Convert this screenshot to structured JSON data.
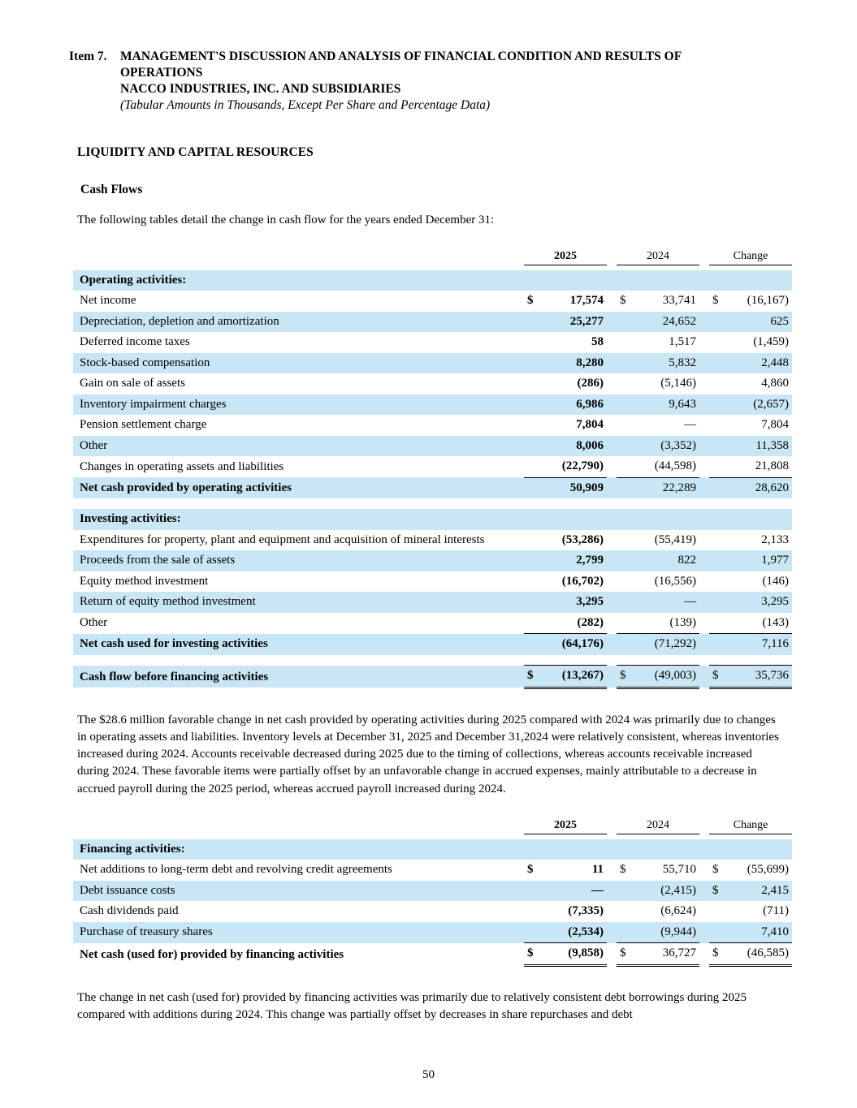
{
  "colors": {
    "row_shade": "#c8e6f4"
  },
  "header": {
    "item_label": "Item 7.",
    "title": "MANAGEMENT'S DISCUSSION AND ANALYSIS OF FINANCIAL CONDITION AND RESULTS OF OPERATIONS",
    "company": "NACCO INDUSTRIES, INC. AND SUBSIDIARIES",
    "note": "(Tabular Amounts in Thousands, Except Per Share and Percentage Data)"
  },
  "section_heading": "LIQUIDITY AND CAPITAL RESOURCES",
  "subsection_heading": "Cash Flows",
  "intro_text": "The following tables detail the change in cash flow for the years ended December 31:",
  "tables": [
    {
      "name": "operating-investing-cash-flow",
      "columns": [
        "2025",
        "2024",
        "Change"
      ],
      "rows": [
        {
          "type": "section",
          "label": "Operating activities:",
          "shaded": true
        },
        {
          "label": "Net income",
          "d": [
            true,
            true,
            true
          ],
          "values": [
            "17,574",
            "33,741",
            "(16,167)"
          ]
        },
        {
          "label": "Depreciation, depletion and amortization",
          "shaded": true,
          "values": [
            "25,277",
            "24,652",
            "625"
          ]
        },
        {
          "label": "Deferred income taxes",
          "values": [
            "58",
            "1,517",
            "(1,459)"
          ]
        },
        {
          "label": "Stock-based compensation",
          "shaded": true,
          "values": [
            "8,280",
            "5,832",
            "2,448"
          ]
        },
        {
          "label": "Gain on sale of assets",
          "values": [
            "(286)",
            "(5,146)",
            "4,860"
          ]
        },
        {
          "label": "Inventory impairment charges",
          "shaded": true,
          "values": [
            "6,986",
            "9,643",
            "(2,657)"
          ]
        },
        {
          "label": "Pension settlement charge",
          "values": [
            "7,804",
            "—",
            "7,804"
          ]
        },
        {
          "label": "Other",
          "shaded": true,
          "values": [
            "8,006",
            "(3,352)",
            "11,358"
          ]
        },
        {
          "label": "Changes in operating assets and liabilities",
          "values": [
            "(22,790)",
            "(44,598)",
            "21,808"
          ]
        },
        {
          "label": "Net cash provided by operating activities",
          "shaded": true,
          "bold": true,
          "topline": true,
          "values": [
            "50,909",
            "22,289",
            "28,620"
          ]
        },
        {
          "type": "spacer"
        },
        {
          "type": "section",
          "label": "Investing activities:",
          "shaded": true
        },
        {
          "label": "Expenditures for property, plant and equipment and acquisition of mineral interests",
          "values": [
            "(53,286)",
            "(55,419)",
            "2,133"
          ]
        },
        {
          "label": "Proceeds from the sale of assets",
          "shaded": true,
          "values": [
            "2,799",
            "822",
            "1,977"
          ]
        },
        {
          "label": "Equity method investment",
          "values": [
            "(16,702)",
            "(16,556)",
            "(146)"
          ]
        },
        {
          "label": "Return of equity method investment",
          "shaded": true,
          "values": [
            "3,295",
            "—",
            "3,295"
          ]
        },
        {
          "label": "Other",
          "values": [
            "(282)",
            "(139)",
            "(143)"
          ]
        },
        {
          "label": "Net cash used for investing activities",
          "shaded": true,
          "bold": true,
          "topline": true,
          "values": [
            "(64,176)",
            "(71,292)",
            "7,116"
          ]
        },
        {
          "type": "spacer"
        },
        {
          "label": "Cash flow before financing activities",
          "shaded": true,
          "bold": true,
          "d": [
            true,
            true,
            true
          ],
          "topline": true,
          "dbl": true,
          "values": [
            "(13,267)",
            "(49,003)",
            "35,736"
          ]
        }
      ]
    },
    {
      "name": "financing-cash-flow",
      "columns": [
        "2025",
        "2024",
        "Change"
      ],
      "rows": [
        {
          "type": "section",
          "label": "Financing activities:",
          "shaded": true
        },
        {
          "label": "Net additions to long-term debt and revolving credit agreements",
          "d": [
            true,
            true,
            true
          ],
          "values": [
            "11",
            "55,710",
            "(55,699)"
          ]
        },
        {
          "label": "Debt issuance costs",
          "shaded": true,
          "d": [
            false,
            false,
            true
          ],
          "values": [
            "—",
            "(2,415)",
            "2,415"
          ]
        },
        {
          "label": "Cash dividends paid",
          "values": [
            "(7,335)",
            "(6,624)",
            "(711)"
          ]
        },
        {
          "label": "Purchase of treasury shares",
          "shaded": true,
          "values": [
            "(2,534)",
            "(9,944)",
            "7,410"
          ]
        },
        {
          "label": "Net cash (used for) provided by financing activities",
          "bold": true,
          "d": [
            true,
            true,
            true
          ],
          "topline": true,
          "dbl": true,
          "values": [
            "(9,858)",
            "36,727",
            "(46,585)"
          ]
        }
      ]
    }
  ],
  "paragraph_operating": "The $28.6 million favorable change in net cash provided by operating activities during 2025 compared with 2024 was primarily due to changes in operating assets and liabilities. Inventory levels at December 31, 2025 and December 31,2024 were relatively consistent, whereas inventories increased during 2024. Accounts receivable decreased during 2025 due to the timing of collections, whereas accounts receivable increased during 2024. These favorable items were partially offset by an unfavorable change in accrued expenses, mainly attributable to a decrease in accrued payroll during the 2025 period, whereas accrued payroll increased during 2024.",
  "paragraph_financing": "The change in net cash (used for) provided by financing activities was primarily due to relatively consistent debt borrowings during 2025 compared with additions during 2024. This change was partially offset by decreases in share repurchases and debt",
  "page_number": "50"
}
